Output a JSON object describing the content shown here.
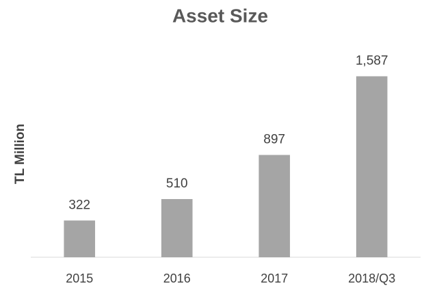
{
  "chart_data": {
    "type": "bar",
    "title": "Asset Size",
    "y_label": "TL Million",
    "categories": [
      "2015",
      "2016",
      "2017",
      "2018/Q3"
    ],
    "values": [
      322,
      510,
      897,
      1587
    ],
    "value_labels": [
      "322",
      "510",
      "897",
      "1,587"
    ],
    "color": "#a5a5a5",
    "ylim": [
      0,
      1800
    ]
  }
}
